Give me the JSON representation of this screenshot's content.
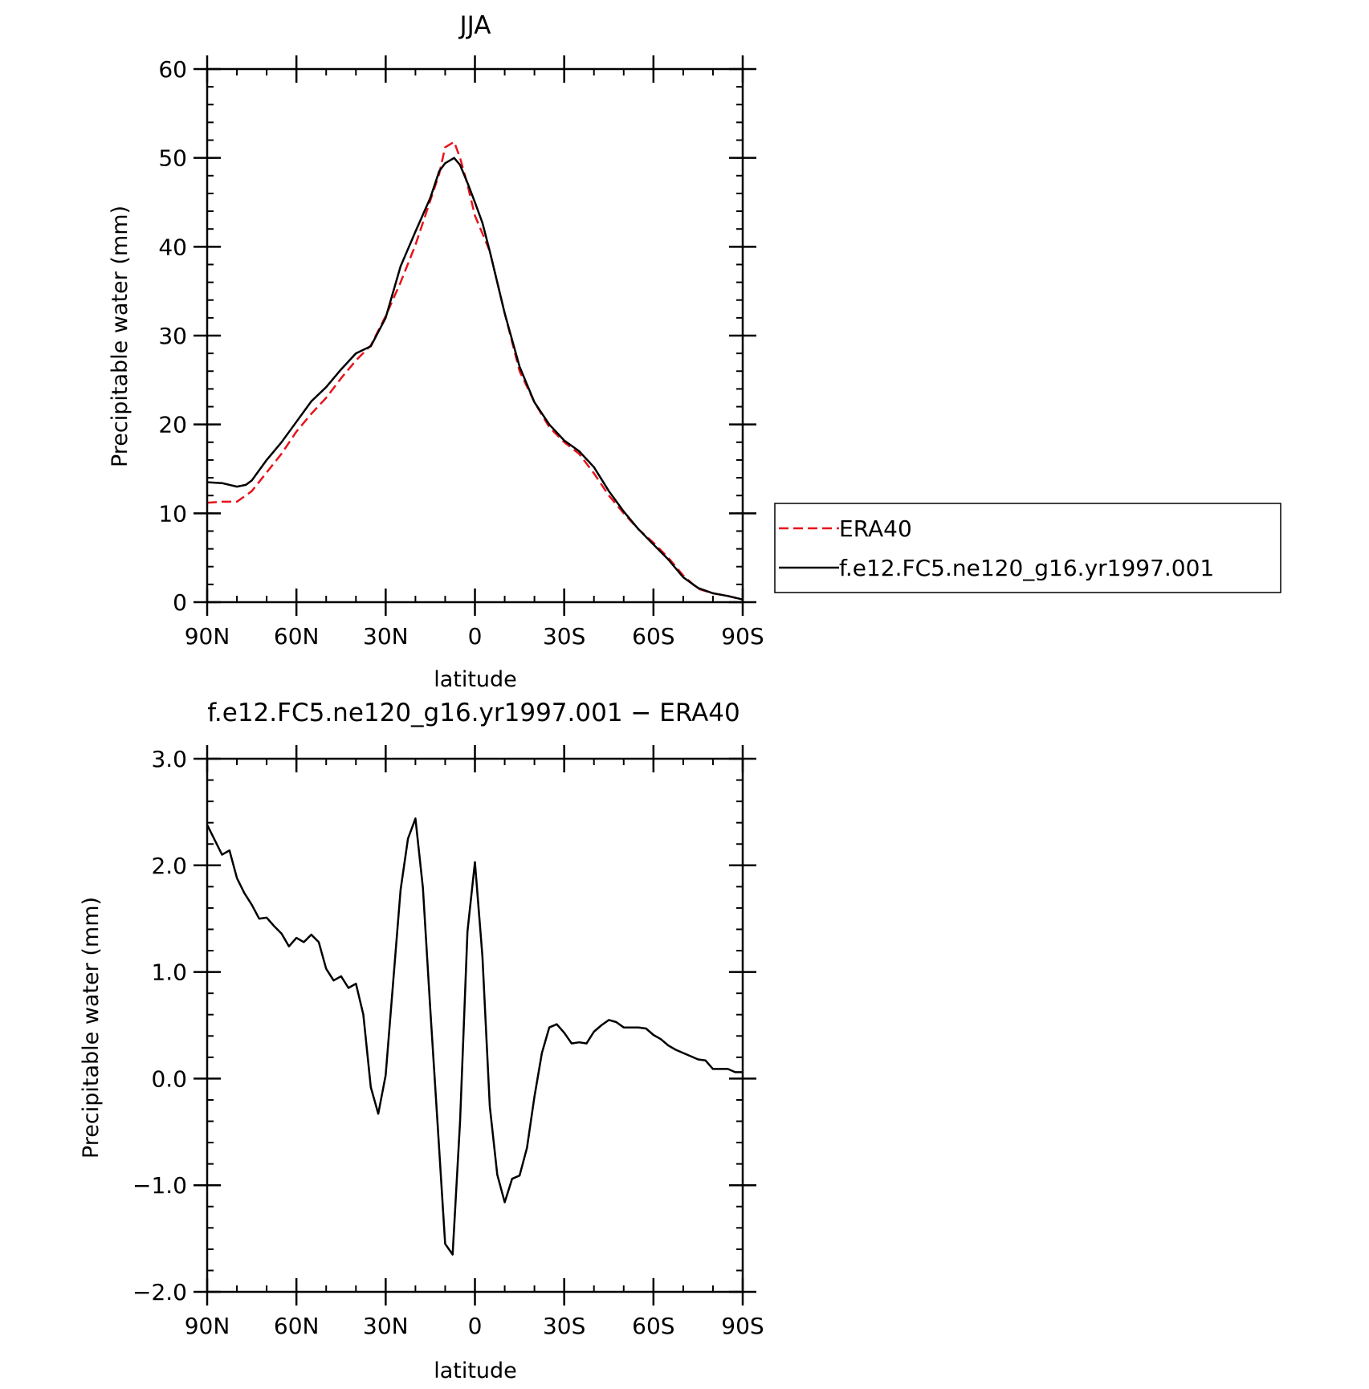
{
  "chart_data": [
    {
      "type": "line",
      "title": "JJA",
      "xlabel": "latitude",
      "ylabel": "Precipitable water (mm)",
      "x_unit_note": "latitude in degrees; positive = N, negative = S",
      "xlim": [
        90,
        -90
      ],
      "ylim": [
        0,
        60
      ],
      "xticks": [
        90,
        60,
        30,
        0,
        -30,
        -60,
        -90
      ],
      "xtick_labels": [
        "90N",
        "60N",
        "30N",
        "0",
        "30S",
        "60S",
        "90S"
      ],
      "yticks": [
        0,
        10,
        20,
        30,
        40,
        50,
        60
      ],
      "ytick_labels": [
        "0",
        "10",
        "20",
        "30",
        "40",
        "50",
        "60"
      ],
      "legend": "right",
      "series": [
        {
          "name": "ERA40",
          "color": "#e8131b",
          "dash": "dashed",
          "x": [
            90,
            85,
            80,
            75,
            70,
            65,
            60,
            55,
            50,
            45,
            40,
            35,
            30,
            25,
            20,
            15,
            12,
            10,
            7,
            5,
            2.5,
            0,
            -2.5,
            -5,
            -10,
            -15,
            -20,
            -25,
            -30,
            -35,
            -40,
            -45,
            -50,
            -55,
            -60,
            -65,
            -70,
            -75,
            -80,
            -85,
            -90
          ],
          "values": [
            11.2,
            11.3,
            11.3,
            12.5,
            14.6,
            16.7,
            19.2,
            21.2,
            23.0,
            25.2,
            27.2,
            28.9,
            32.2,
            36.0,
            40.2,
            45.2,
            48.2,
            51.2,
            51.8,
            50.0,
            47.0,
            43.5,
            41.5,
            39.5,
            32.5,
            26.0,
            22.5,
            19.7,
            18.0,
            16.7,
            14.5,
            12.0,
            10.0,
            8.2,
            6.7,
            5.0,
            3.0,
            1.5,
            1.0,
            0.7,
            0.3
          ]
        },
        {
          "name": "f.e12.FC5.ne120_g16.yr1997.001",
          "color": "#000000",
          "dash": "solid",
          "x": [
            90,
            85,
            80,
            77,
            75,
            70,
            65,
            60,
            55,
            50,
            45,
            40,
            35,
            30,
            25,
            20,
            15,
            12,
            10,
            7,
            5,
            2.5,
            0,
            -2.5,
            -5,
            -10,
            -15,
            -20,
            -25,
            -30,
            -35,
            -40,
            -45,
            -50,
            -55,
            -60,
            -65,
            -70,
            -75,
            -80,
            -85,
            -90
          ],
          "values": [
            13.5,
            13.4,
            13.0,
            13.2,
            13.7,
            16.0,
            18.0,
            20.3,
            22.6,
            24.2,
            26.2,
            28.0,
            28.8,
            32.0,
            37.8,
            41.7,
            45.5,
            48.5,
            49.4,
            50.0,
            49.2,
            47.2,
            45.0,
            42.7,
            39.5,
            32.5,
            26.5,
            22.5,
            20.0,
            18.2,
            17.0,
            15.2,
            12.5,
            10.2,
            8.2,
            6.5,
            4.8,
            2.8,
            1.6,
            1.0,
            0.7,
            0.3
          ]
        }
      ]
    },
    {
      "type": "line",
      "title": "f.e12.FC5.ne120_g16.yr1997.001 − ERA40",
      "xlabel": "latitude",
      "ylabel": "Precipitable water (mm)",
      "x_unit_note": "latitude in degrees; positive = N, negative = S",
      "xlim": [
        90,
        -90
      ],
      "ylim": [
        -2.0,
        3.0
      ],
      "xticks": [
        90,
        60,
        30,
        0,
        -30,
        -60,
        -90
      ],
      "xtick_labels": [
        "90N",
        "60N",
        "30N",
        "0",
        "30S",
        "60S",
        "90S"
      ],
      "yticks": [
        -2.0,
        -1.0,
        0.0,
        1.0,
        2.0,
        3.0
      ],
      "ytick_labels": [
        "−2.0",
        "−1.0",
        "0.0",
        "1.0",
        "2.0",
        "3.0"
      ],
      "series": [
        {
          "color": "#000000",
          "dash": "solid",
          "x": [
            90,
            87.5,
            85,
            82.5,
            80,
            77.5,
            75,
            72.5,
            70,
            67.5,
            65,
            62.5,
            60,
            57.5,
            55,
            52.5,
            50,
            47.5,
            45,
            42.5,
            40,
            37.5,
            35,
            32.5,
            30,
            27.5,
            25,
            22.5,
            20,
            17.5,
            15,
            12.5,
            10,
            7.5,
            5,
            2.5,
            0,
            -2.5,
            -5,
            -7.5,
            -10,
            -12.5,
            -15,
            -17.5,
            -20,
            -22.5,
            -25,
            -27.5,
            -30,
            -32.5,
            -35,
            -37.5,
            -40,
            -42.5,
            -45,
            -47.5,
            -50,
            -52.5,
            -55,
            -57.5,
            -60,
            -62.5,
            -65,
            -67.5,
            -70,
            -72.5,
            -75,
            -77.5,
            -80,
            -82.5,
            -85,
            -87.5,
            -90
          ],
          "values": [
            2.38,
            2.24,
            2.1,
            2.14,
            1.88,
            1.74,
            1.63,
            1.5,
            1.51,
            1.43,
            1.36,
            1.24,
            1.32,
            1.28,
            1.35,
            1.28,
            1.03,
            0.92,
            0.96,
            0.85,
            0.89,
            0.6,
            -0.08,
            -0.33,
            0.03,
            0.9,
            1.77,
            2.25,
            2.44,
            1.79,
            0.65,
            -0.45,
            -1.55,
            -1.65,
            -0.4,
            1.38,
            2.03,
            1.15,
            -0.26,
            -0.9,
            -1.16,
            -0.94,
            -0.91,
            -0.65,
            -0.17,
            0.24,
            0.48,
            0.51,
            0.43,
            0.33,
            0.34,
            0.33,
            0.44,
            0.5,
            0.55,
            0.53,
            0.48,
            0.48,
            0.48,
            0.47,
            0.41,
            0.37,
            0.31,
            0.27,
            0.24,
            0.21,
            0.18,
            0.17,
            0.09,
            0.09,
            0.09,
            0.06,
            0.06
          ]
        }
      ]
    }
  ]
}
